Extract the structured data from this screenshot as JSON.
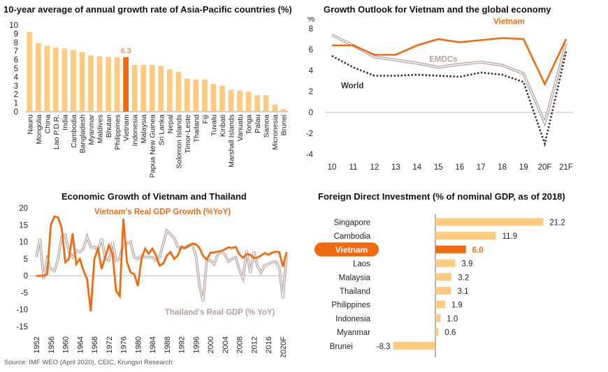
{
  "source": "Source: IMF WEO (April 2020), CEIC, Krungsri Research",
  "chart_data": [
    {
      "type": "bar",
      "title": "10-year average of annual growth rate of Asia-Pacific countries (%)",
      "categories": [
        "Nauru",
        "Mongolia",
        "China",
        "Lao P.D.R.",
        "India",
        "Cambodia",
        "Bangladesh",
        "Myanmar",
        "Maldives",
        "Bhutan",
        "Philippines",
        "Vietnam",
        "Indonesia",
        "Malaysia",
        "Papua New Guinea",
        "Sri Lanka",
        "Nepal",
        "Solomon Islands",
        "Timor-Leste",
        "Thailand",
        "Fiji",
        "Tuvalu",
        "Kiribati",
        "Marshall Islands",
        "Vanuatu",
        "Tonga",
        "Palau",
        "Samoa",
        "Micronesia",
        "Brunei"
      ],
      "values": [
        9.2,
        7.9,
        7.6,
        7.4,
        7.3,
        7.1,
        6.9,
        6.5,
        6.4,
        6.3,
        6.3,
        6.3,
        5.4,
        5.4,
        5.4,
        5.3,
        4.9,
        4.6,
        3.8,
        3.7,
        3.7,
        3.2,
        3.0,
        2.5,
        2.4,
        2.3,
        1.9,
        1.9,
        0.8,
        0.3
      ],
      "highlight": "Vietnam",
      "highlight_label": "6.3",
      "yticks": [
        "0",
        "1",
        "2",
        "3",
        "4",
        "5",
        "6",
        "7",
        "8",
        "9",
        "10"
      ],
      "ylim": [
        0,
        10
      ],
      "colors": {
        "bar": "#fccb80",
        "highlight": "#f26a10"
      }
    },
    {
      "type": "line",
      "title": "Growth Outlook for Vietnam and the global economy",
      "yunit": "%",
      "x": [
        "10",
        "11",
        "12",
        "13",
        "14",
        "15",
        "16",
        "17",
        "18",
        "19",
        "20F",
        "21F"
      ],
      "ylim": [
        -4,
        8
      ],
      "yticks": [
        "8",
        "6",
        "4",
        "2",
        "0",
        "-2",
        "-4"
      ],
      "series": [
        {
          "name": "Vietnam",
          "values": [
            6.4,
            6.4,
            5.5,
            5.5,
            6.4,
            7.0,
            6.7,
            6.9,
            7.1,
            7.0,
            2.7,
            7.0
          ],
          "color": "#f26a10"
        },
        {
          "name": "EMDCs",
          "values": [
            7.4,
            6.4,
            5.3,
            5.0,
            4.7,
            4.3,
            4.6,
            4.8,
            4.5,
            3.7,
            -1.0,
            6.6
          ],
          "color": "#b7a29d"
        },
        {
          "name": "World",
          "values": [
            5.4,
            4.3,
            3.5,
            3.5,
            3.6,
            3.5,
            3.4,
            3.8,
            3.6,
            2.9,
            -3.0,
            5.8
          ],
          "color": "#333333"
        }
      ]
    },
    {
      "type": "line",
      "title": "Economic Growth of Vietnam and Thailand",
      "x": [
        1952,
        1953,
        1954,
        1955,
        1956,
        1957,
        1958,
        1959,
        1960,
        1961,
        1962,
        1963,
        1964,
        1965,
        1966,
        1967,
        1968,
        1969,
        1970,
        1971,
        1972,
        1973,
        1974,
        1975,
        1976,
        1977,
        1978,
        1979,
        1980,
        1981,
        1982,
        1983,
        1984,
        1985,
        1986,
        1987,
        1988,
        1989,
        1990,
        1991,
        1992,
        1993,
        1994,
        1995,
        1996,
        1997,
        1998,
        1999,
        2000,
        2001,
        2002,
        2003,
        2004,
        2005,
        2006,
        2007,
        2008,
        2009,
        2010,
        2011,
        2012,
        2013,
        2014,
        2015,
        2016,
        2017,
        2018,
        2019,
        2020,
        2021
      ],
      "xticks": [
        "1952",
        "1956",
        "1960",
        "1964",
        "1968",
        "1972",
        "1976",
        "1980",
        "1984",
        "1988",
        "1992",
        "1996",
        "2000",
        "2004",
        "2008",
        "2012",
        "2016",
        "2020F"
      ],
      "ylim": [
        -15,
        20
      ],
      "yticks": [
        "20",
        "15",
        "10",
        "5",
        "0",
        "-5",
        "-10",
        "-15"
      ],
      "series": [
        {
          "name": "Vietnam's Real GDP Growth (%YoY)",
          "color": "#f26a10",
          "values": [
            0,
            0,
            0,
            0.5,
            15,
            17.5,
            17.2,
            14,
            4,
            5,
            12.5,
            3.5,
            5,
            1.5,
            -1,
            -10.5,
            5,
            8,
            2,
            5.5,
            9,
            6.5,
            -4.5,
            -6,
            16.8,
            4,
            1,
            0.5,
            -3,
            5,
            8,
            6.5,
            8,
            6,
            3,
            3.6,
            6,
            7,
            5,
            6,
            8.6,
            8.1,
            8.8,
            9.5,
            9.3,
            8.2,
            5.8,
            4.8,
            6.8,
            6.9,
            7.1,
            7.3,
            7.8,
            8.4,
            8.2,
            8.5,
            6.3,
            5.3,
            6.4,
            6.2,
            5.2,
            5.4,
            6,
            6.7,
            6.2,
            6.8,
            7.1,
            7,
            2.7,
            7
          ]
        },
        {
          "name": "Thailand's Real GDP (% YoY)",
          "color": "#b7a29d",
          "values": [
            5.5,
            11,
            -1,
            5,
            2,
            1.5,
            5,
            11.5,
            12,
            7,
            5.5,
            7.5,
            7,
            8,
            11.5,
            8.5,
            8.5,
            7.5,
            11,
            5,
            4.5,
            10,
            4.5,
            5,
            9.5,
            9.5,
            10,
            5.5,
            5,
            6,
            5.5,
            5.5,
            5.5,
            4.5,
            5.5,
            9.5,
            13.3,
            12.2,
            11.2,
            8.6,
            8.1,
            8.3,
            9,
            9.2,
            5.9,
            -2.8,
            -7.6,
            4.6,
            4.5,
            3.4,
            6.1,
            7.2,
            6.3,
            4.2,
            5,
            5.4,
            1.7,
            -0.7,
            7.5,
            0.8,
            7.2,
            2.7,
            1,
            3.1,
            3.4,
            4,
            4.2,
            2.4,
            -6.7,
            6.1
          ]
        }
      ]
    },
    {
      "type": "bar",
      "title": "Foreign Direct Investment (% of nominal GDP, as of 2018)",
      "categories": [
        "Singapore",
        "Cambodia",
        "Vietnam",
        "Laos",
        "Malaysia",
        "Thailand",
        "Philippines",
        "Indonesia",
        "Myanmar",
        "Brunei"
      ],
      "values": [
        21.2,
        11.9,
        6.0,
        3.9,
        3.2,
        3.1,
        1.9,
        1.0,
        0.6,
        -8.3
      ],
      "labels": [
        "21.2",
        "11.9",
        "6.0",
        "3.9",
        "3.2",
        "3.1",
        "1.9",
        "1.0",
        "0.6",
        "-8.3"
      ],
      "highlight": "Vietnam",
      "colors": {
        "bar": "#fccb80",
        "highlight": "#f26a10"
      }
    }
  ]
}
